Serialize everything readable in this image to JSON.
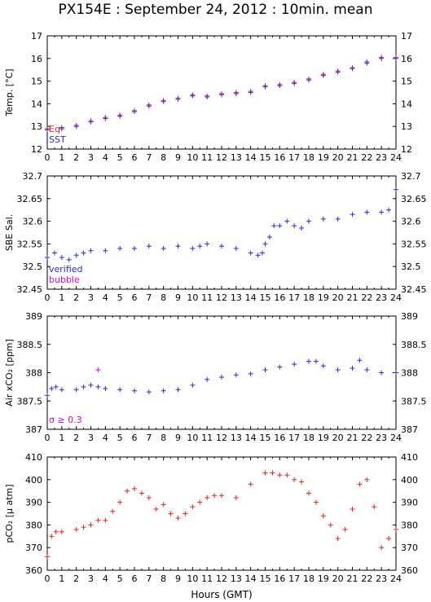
{
  "title": "PX154E : September 24, 2012 : 10min. mean",
  "xlabel": "Hours (GMT)",
  "colors": {
    "red": "#e8231f",
    "blue": "#2a2ae0",
    "magenta": "#e000e0",
    "frame": "#000000"
  },
  "chart_data": [
    {
      "type": "line",
      "ylabel": "Temp. [°C]",
      "xlim": [
        0,
        24
      ],
      "ylim": [
        12,
        17
      ],
      "xticks": [
        0,
        1,
        2,
        3,
        4,
        5,
        6,
        7,
        8,
        9,
        10,
        11,
        12,
        13,
        14,
        15,
        16,
        17,
        18,
        19,
        20,
        21,
        22,
        23,
        24
      ],
      "yticks": [
        12,
        13,
        14,
        15,
        16,
        17
      ],
      "legend": [
        {
          "label": "Eq",
          "color": "#e8231f"
        },
        {
          "label": "SST",
          "color": "#2a2ae0"
        }
      ],
      "legend_position": "bottom-left",
      "series": [
        {
          "name": "Eq",
          "color": "#e8231f",
          "x": [
            0,
            1,
            2,
            3,
            4,
            5,
            6,
            7,
            8,
            9,
            10,
            11,
            12,
            13,
            14,
            15,
            16,
            17,
            18,
            19,
            20,
            21,
            22,
            23,
            24
          ],
          "y": [
            12.9,
            12.95,
            13.05,
            13.25,
            13.4,
            13.5,
            13.7,
            13.95,
            14.15,
            14.25,
            14.4,
            14.35,
            14.45,
            14.5,
            14.55,
            14.8,
            14.85,
            14.95,
            15.1,
            15.3,
            15.45,
            15.6,
            15.85,
            16.05,
            16.05
          ]
        },
        {
          "name": "SST",
          "color": "#2a2ae0",
          "x": [
            0,
            1,
            2,
            3,
            4,
            5,
            6,
            7,
            8,
            9,
            10,
            11,
            12,
            13,
            14,
            15,
            16,
            17,
            18,
            19,
            20,
            21,
            22,
            23,
            24
          ],
          "y": [
            12.85,
            12.9,
            13.0,
            13.2,
            13.35,
            13.45,
            13.65,
            13.9,
            14.1,
            14.2,
            14.35,
            14.3,
            14.4,
            14.45,
            14.5,
            14.75,
            14.8,
            14.9,
            15.05,
            15.25,
            15.4,
            15.55,
            15.8,
            16.0,
            16.0
          ]
        }
      ]
    },
    {
      "type": "scatter",
      "ylabel": "SBE Sal.",
      "xlim": [
        0,
        24
      ],
      "ylim": [
        32.45,
        32.7
      ],
      "xticks": [
        0,
        1,
        2,
        3,
        4,
        5,
        6,
        7,
        8,
        9,
        10,
        11,
        12,
        13,
        14,
        15,
        16,
        17,
        18,
        19,
        20,
        21,
        22,
        23,
        24
      ],
      "yticks": [
        32.45,
        32.5,
        32.55,
        32.6,
        32.65,
        32.7
      ],
      "legend": [
        {
          "label": "verified",
          "color": "#2a2ae0"
        },
        {
          "label": "bubble",
          "color": "#e000e0"
        }
      ],
      "legend_position": "bottom-left",
      "series": [
        {
          "name": "verified",
          "color": "#2a2ae0",
          "x": [
            0,
            0.5,
            1,
            1.5,
            2,
            2.5,
            3,
            4,
            5,
            6,
            7,
            8,
            9,
            10,
            10.5,
            11,
            12,
            13,
            14,
            14.5,
            14.8,
            15,
            15.3,
            15.6,
            16,
            16.5,
            17,
            17.5,
            18,
            19,
            20,
            21,
            22,
            23,
            23.5,
            24
          ],
          "y": [
            32.52,
            32.53,
            32.52,
            32.515,
            32.525,
            32.53,
            32.535,
            32.535,
            32.54,
            32.54,
            32.545,
            32.54,
            32.545,
            32.54,
            32.545,
            32.55,
            32.545,
            32.54,
            32.53,
            32.525,
            32.53,
            32.55,
            32.565,
            32.59,
            32.59,
            32.6,
            32.59,
            32.585,
            32.6,
            32.605,
            32.605,
            32.615,
            32.62,
            32.62,
            32.625,
            32.67
          ]
        }
      ]
    },
    {
      "type": "scatter",
      "ylabel": "Air xCO₂ [ppm]",
      "xlim": [
        0,
        24
      ],
      "ylim": [
        387,
        389
      ],
      "xticks": [
        0,
        1,
        2,
        3,
        4,
        5,
        6,
        7,
        8,
        9,
        10,
        11,
        12,
        13,
        14,
        15,
        16,
        17,
        18,
        19,
        20,
        21,
        22,
        23,
        24
      ],
      "yticks": [
        387,
        387.5,
        388,
        388.5,
        389
      ],
      "legend": [
        {
          "label": "σ ≥ 0.3",
          "color": "#e000e0"
        }
      ],
      "legend_position": "bottom-left",
      "series": [
        {
          "name": "",
          "color": "#2a2ae0",
          "x": [
            0,
            0.3,
            0.6,
            1,
            2,
            2.5,
            3,
            3.5,
            4,
            5,
            6,
            7,
            8,
            9,
            10,
            11,
            12,
            13,
            14,
            15,
            16,
            17,
            18,
            18.5,
            19,
            20,
            21,
            21.5,
            22,
            23,
            24
          ],
          "y": [
            387.6,
            387.72,
            387.75,
            387.7,
            387.7,
            387.75,
            387.78,
            387.75,
            387.72,
            387.7,
            387.68,
            387.66,
            387.68,
            387.7,
            387.78,
            387.88,
            387.92,
            387.96,
            387.98,
            388.05,
            388.1,
            388.15,
            388.2,
            388.2,
            388.12,
            388.05,
            388.08,
            388.22,
            388.05,
            388.0,
            388.0
          ]
        },
        {
          "name": "",
          "color": "#e000e0",
          "x": [
            3.5
          ],
          "y": [
            388.05
          ]
        }
      ]
    },
    {
      "type": "scatter",
      "ylabel": "pCO₂ [μ atm]",
      "xlim": [
        0,
        24
      ],
      "ylim": [
        360,
        410
      ],
      "xticks": [
        0,
        1,
        2,
        3,
        4,
        5,
        6,
        7,
        8,
        9,
        10,
        11,
        12,
        13,
        14,
        15,
        16,
        17,
        18,
        19,
        20,
        21,
        22,
        23,
        24
      ],
      "yticks": [
        360,
        370,
        380,
        390,
        400,
        410
      ],
      "series": [
        {
          "name": "",
          "color": "#e8231f",
          "x": [
            0,
            0.3,
            0.6,
            1,
            2,
            2.5,
            3,
            3.5,
            4,
            4.5,
            5,
            5.5,
            6,
            6.5,
            7,
            7.5,
            8,
            8.5,
            9,
            9.5,
            10,
            10.5,
            11,
            11.5,
            12,
            13,
            14,
            15,
            15.5,
            16,
            16.5,
            17,
            17.5,
            18,
            18.5,
            19,
            19.5,
            20,
            20.5,
            21,
            21.5,
            22,
            22.5,
            23,
            23.5,
            24
          ],
          "y": [
            366,
            375,
            377,
            377,
            378,
            379,
            380,
            382,
            382,
            386,
            390,
            395,
            396,
            394,
            392,
            387,
            389,
            385,
            383,
            385,
            388,
            390,
            392,
            393,
            393,
            392,
            398,
            403,
            403,
            402,
            402,
            400,
            399,
            394,
            390,
            384,
            380,
            374,
            378,
            387,
            398,
            400,
            388,
            370,
            374,
            378
          ]
        }
      ]
    }
  ]
}
